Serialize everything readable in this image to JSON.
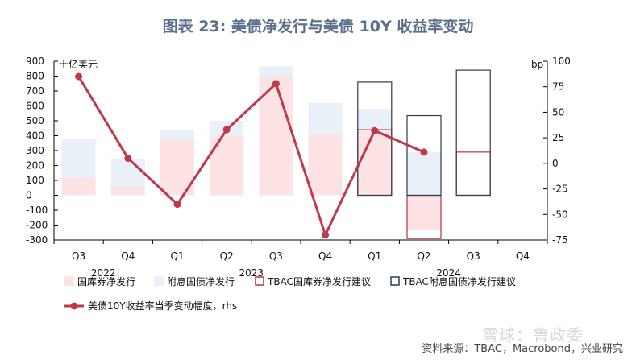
{
  "title": "图表 23: 美债净发行与美债 10Y 收益率变动",
  "source": "资料来源：TBAC，Macrobond，兴业研究",
  "watermark": "雪球：鲁政委",
  "chart_data": {
    "type": "bar",
    "title": "图表 23: 美债净发行与美债 10Y 收益率变动",
    "ylabel_left": "十亿美元",
    "ylabel_right": "bp",
    "ylim_left": [
      -300,
      900
    ],
    "yticks_left": [
      -300,
      -200,
      -100,
      0,
      100,
      200,
      300,
      400,
      500,
      600,
      700,
      800,
      900
    ],
    "ylim_right": [
      -75,
      100
    ],
    "yticks_right": [
      -75,
      -50,
      -25,
      0,
      25,
      50,
      75,
      100
    ],
    "categories": [
      "Q3",
      "Q4",
      "Q1",
      "Q2",
      "Q3",
      "Q4",
      "Q1",
      "Q2",
      "Q3",
      "Q4"
    ],
    "year_labels": [
      {
        "label": "2022",
        "from": 0,
        "to": 1
      },
      {
        "label": "2023",
        "from": 2,
        "to": 5
      },
      {
        "label": "2024",
        "from": 6,
        "to": 9
      }
    ],
    "series": [
      {
        "name": "国库券净发行",
        "kind": "bar-filled",
        "color": "#fde3e3",
        "values": [
          120,
          55,
          370,
          400,
          800,
          415,
          430,
          -230,
          null,
          null
        ]
      },
      {
        "name": "附息国债净发行",
        "kind": "bar-filled",
        "color": "#eaf0f8",
        "values": [
          380,
          245,
          440,
          500,
          865,
          620,
          580,
          290,
          null,
          null
        ]
      },
      {
        "name": "TBAC国库券净发行建议",
        "kind": "bar-outline",
        "color": "#b5323f",
        "values": [
          null,
          null,
          null,
          null,
          null,
          null,
          440,
          -290,
          290,
          null
        ]
      },
      {
        "name": "TBAC附息国债净发行建议",
        "kind": "bar-outline",
        "color": "#2f3b4f",
        "values": [
          null,
          null,
          null,
          null,
          null,
          null,
          760,
          535,
          840,
          null
        ]
      },
      {
        "name": "美债10Y收益率当季变动幅度，rhs",
        "kind": "line",
        "axis": "right",
        "color": "#c0394b",
        "values": [
          85,
          5,
          -40,
          33,
          78,
          -70,
          32,
          11,
          null,
          null
        ]
      }
    ],
    "legend": [
      {
        "label": "国库券净发行",
        "style": "fill",
        "color": "#fde3e3"
      },
      {
        "label": "附息国债净发行",
        "style": "fill",
        "color": "#eaf0f8"
      },
      {
        "label": "TBAC国库券净发行建议",
        "style": "outline",
        "color": "#b5323f"
      },
      {
        "label": "TBAC附息国债净发行建议",
        "style": "outline",
        "color": "#2f3b4f"
      },
      {
        "label": "美债10Y收益率当季变动幅度，rhs",
        "style": "line",
        "color": "#c0394b"
      }
    ],
    "legend_position": "bottom",
    "grid": false
  }
}
